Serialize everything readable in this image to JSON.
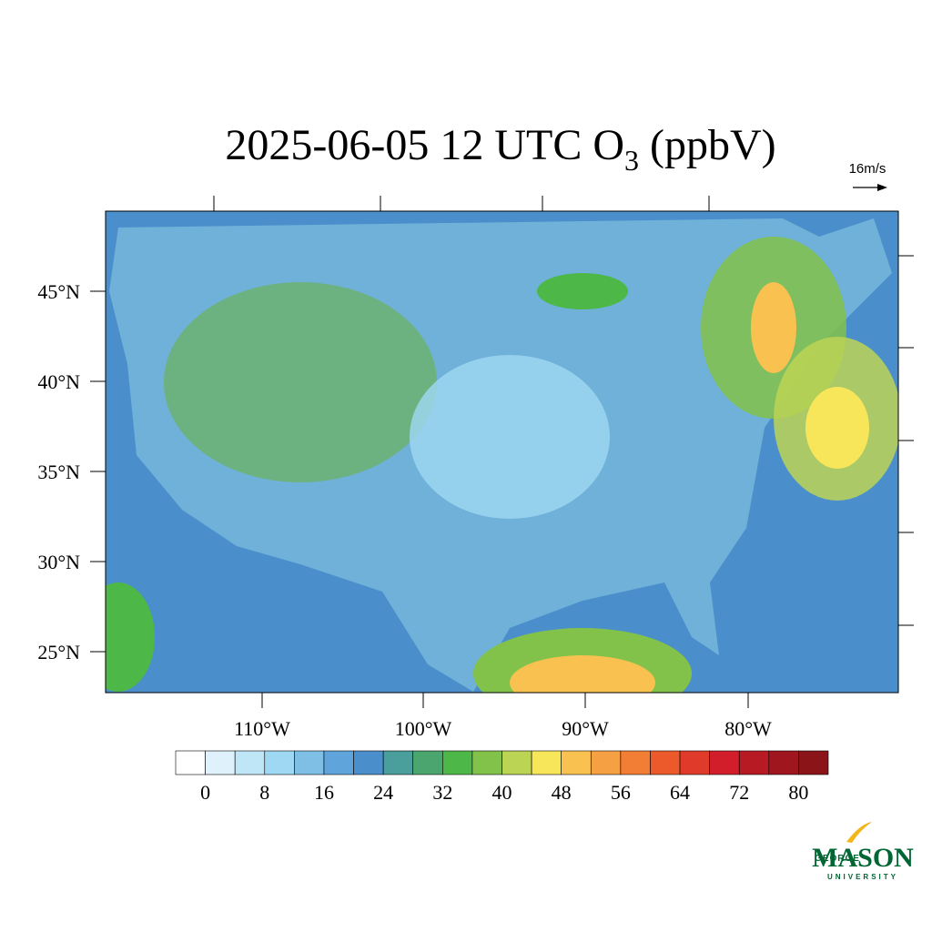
{
  "title": {
    "main": "2025-06-05 12 UTC O",
    "subscript": "3",
    "suffix": " (ppbV)"
  },
  "vector_reference": "16m/s",
  "lat_labels": [
    "45°N",
    "40°N",
    "35°N",
    "30°N",
    "25°N"
  ],
  "lon_labels": [
    "110°W",
    "100°W",
    "90°W",
    "80°W"
  ],
  "colorbar": {
    "colors": [
      "#ffffff",
      "#dff2fb",
      "#bfe6f7",
      "#9fd8f3",
      "#7fbfe6",
      "#5fa5dc",
      "#4a8fcc",
      "#4a9e9c",
      "#4aa66e",
      "#4db847",
      "#82c24a",
      "#bcd454",
      "#f7e55a",
      "#f8c150",
      "#f6a044",
      "#f27d34",
      "#ec5a2c",
      "#e03a2a",
      "#d21e2a",
      "#b81a24",
      "#a0161e",
      "#8a1418"
    ],
    "ticks": [
      0,
      8,
      16,
      24,
      32,
      40,
      48,
      56,
      64,
      72,
      80
    ],
    "step": 4
  },
  "logo": {
    "line1": "GEORGE",
    "line2": "MASON",
    "line3": "UNIVERSITY"
  }
}
